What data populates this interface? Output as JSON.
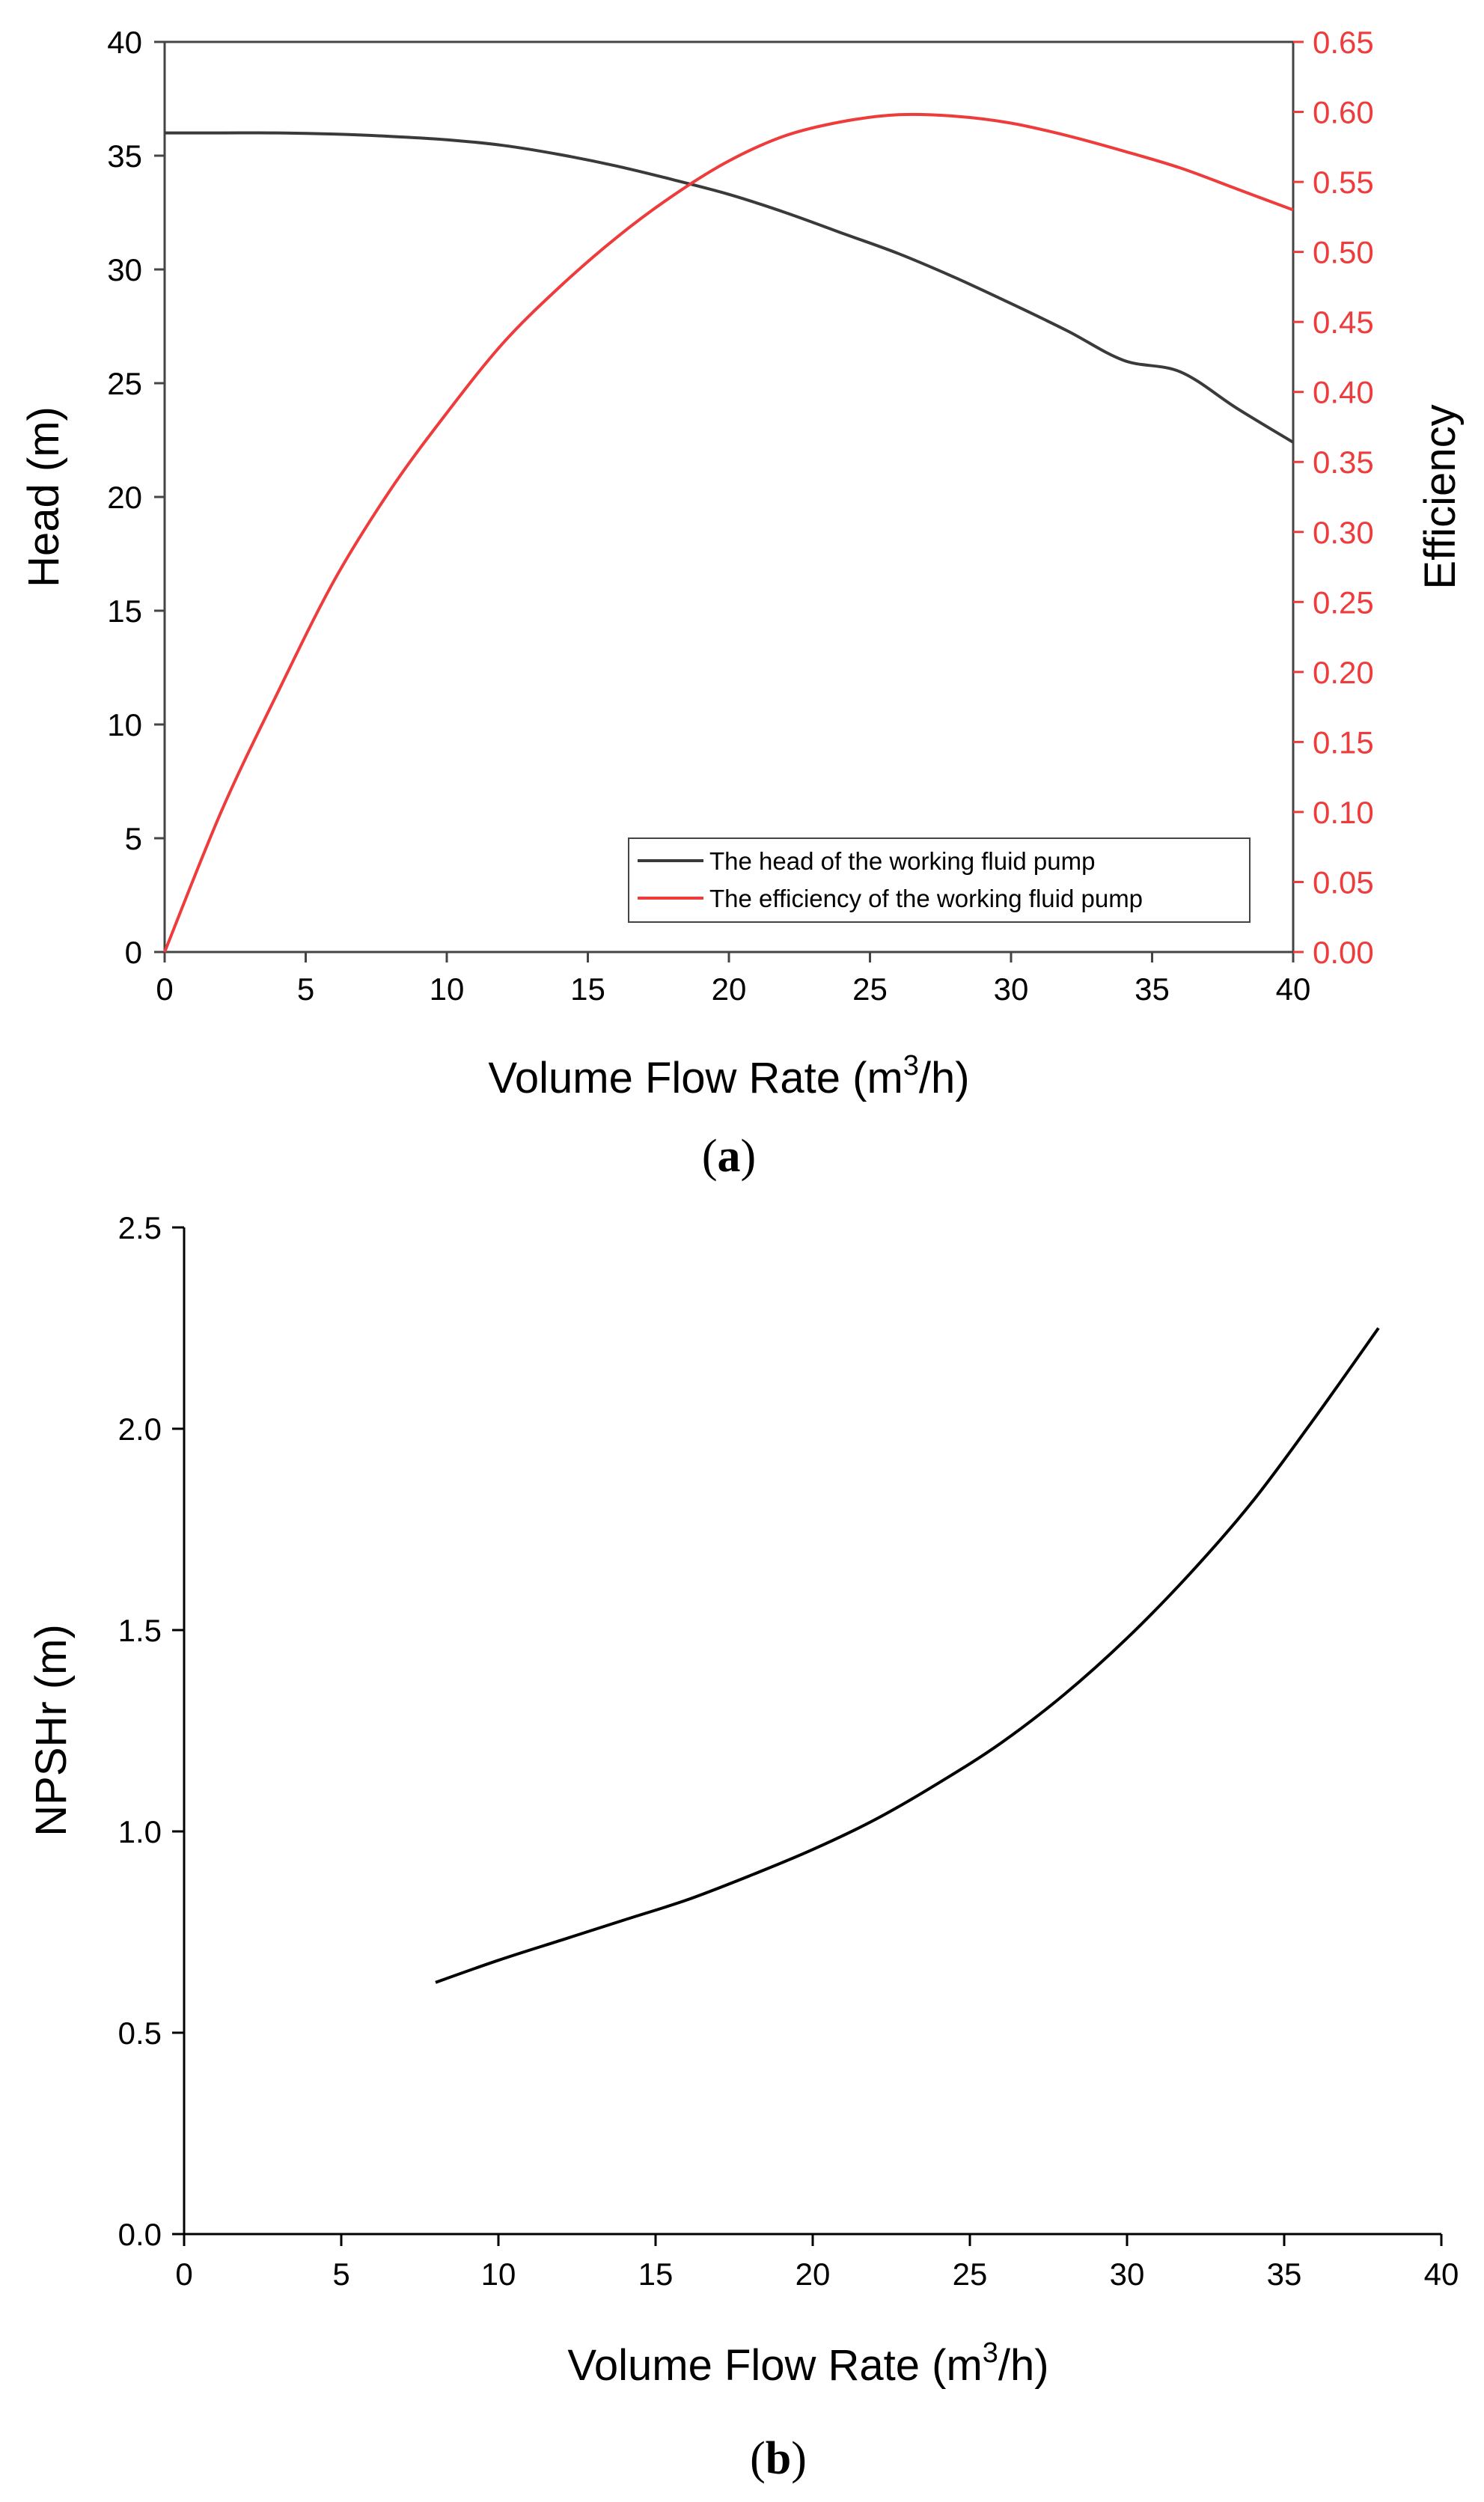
{
  "colors": {
    "head": "#3a3a3a",
    "efficiency": "#ee3b3b",
    "npshr": "#000000",
    "axis": "#444444"
  },
  "chart_data": [
    {
      "panel": "a",
      "type": "line",
      "xlabel": "Volume Flow Rate (m³/h)",
      "xlabel_parts": [
        "Volume Flow Rate (m",
        "3",
        "/h)"
      ],
      "ylabel": "Head (m)",
      "y2label": "Efficiency",
      "xlim": [
        0,
        40
      ],
      "ylim": [
        0,
        40
      ],
      "y2lim": [
        0,
        0.65
      ],
      "xticks": [
        "0",
        "5",
        "10",
        "15",
        "20",
        "25",
        "30",
        "35",
        "40"
      ],
      "yticks": [
        "0",
        "5",
        "10",
        "15",
        "20",
        "25",
        "30",
        "35",
        "40"
      ],
      "y2ticks": [
        "0.00",
        "0.05",
        "0.10",
        "0.15",
        "0.20",
        "0.25",
        "0.30",
        "0.35",
        "0.40",
        "0.45",
        "0.50",
        "0.55",
        "0.60",
        "0.65"
      ],
      "legend_position": "bottom-right",
      "series": [
        {
          "name": "The head of the working fluid pump",
          "axis": "left",
          "x": [
            0,
            2,
            4,
            6,
            8,
            10,
            12,
            14,
            16,
            18,
            20,
            22,
            24,
            26,
            28,
            30,
            32,
            34,
            36,
            38,
            40
          ],
          "y": [
            36.0,
            36.0,
            36.0,
            35.95,
            35.85,
            35.7,
            35.45,
            35.05,
            34.55,
            33.95,
            33.3,
            32.5,
            31.6,
            30.7,
            29.65,
            28.5,
            27.3,
            26.0,
            25.5,
            23.9,
            22.4
          ]
        },
        {
          "name": "The efficiency of the working fluid pump",
          "axis": "right",
          "x": [
            0,
            2,
            4,
            6,
            8,
            10,
            12,
            14,
            16,
            18,
            20,
            22,
            24,
            26,
            28,
            30,
            32,
            34,
            36,
            38,
            40
          ],
          "y": [
            0.0,
            0.1,
            0.185,
            0.265,
            0.33,
            0.385,
            0.435,
            0.475,
            0.51,
            0.54,
            0.565,
            0.583,
            0.593,
            0.598,
            0.597,
            0.592,
            0.583,
            0.572,
            0.56,
            0.545,
            0.53
          ]
        }
      ]
    },
    {
      "panel": "b",
      "type": "line",
      "xlabel": "Volume Flow Rate (m³/h)",
      "xlabel_parts": [
        "Volume Flow Rate (m",
        "3",
        "/h)"
      ],
      "ylabel": "NPSHr (m)",
      "xlim": [
        0,
        40
      ],
      "ylim": [
        0,
        2.5
      ],
      "xticks": [
        "0",
        "5",
        "10",
        "15",
        "20",
        "25",
        "30",
        "35",
        "40"
      ],
      "yticks": [
        "0.0",
        "0.5",
        "1.0",
        "1.5",
        "2.0",
        "2.5"
      ],
      "series": [
        {
          "name": "NPSHr",
          "x": [
            8,
            10,
            12,
            14,
            16,
            18,
            20,
            22,
            24,
            26,
            28,
            30,
            32,
            34,
            36,
            38
          ],
          "y": [
            0.625,
            0.68,
            0.73,
            0.78,
            0.83,
            0.89,
            0.955,
            1.03,
            1.12,
            1.22,
            1.34,
            1.48,
            1.64,
            1.82,
            2.03,
            2.25
          ]
        }
      ]
    }
  ],
  "panel_labels": [
    "a",
    "b"
  ]
}
